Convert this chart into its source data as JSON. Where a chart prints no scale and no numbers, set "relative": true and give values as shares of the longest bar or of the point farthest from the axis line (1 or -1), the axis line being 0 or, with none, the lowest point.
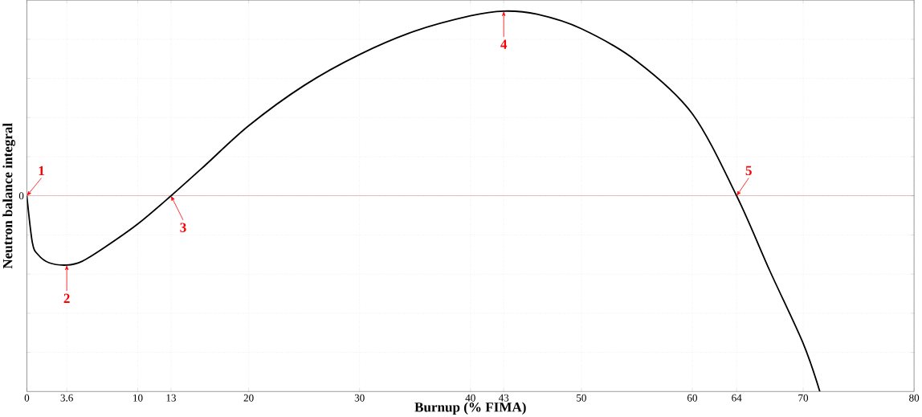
{
  "chart_data": {
    "type": "line",
    "relative": true,
    "xlabel": "Burnup (% FIMA)",
    "ylabel": "Neutron balance integral",
    "xlim": [
      0,
      80
    ],
    "xticks": [
      0,
      3.6,
      10,
      13,
      20,
      30,
      40,
      43,
      50,
      60,
      64,
      70,
      80
    ],
    "grid": true,
    "marker": "none",
    "line_style": "solid",
    "series": [
      {
        "color": "#000000",
        "x": [
          0,
          0.5,
          1,
          2,
          3.6,
          5,
          7,
          10,
          13,
          16,
          20,
          25,
          30,
          35,
          40,
          43,
          46,
          50,
          55,
          60,
          64,
          67,
          70,
          71.5
        ],
        "values": [
          0,
          -0.24,
          -0.3,
          -0.342,
          -0.354,
          -0.334,
          -0.264,
          -0.144,
          0,
          0.152,
          0.358,
          0.564,
          0.722,
          0.842,
          0.92,
          0.944,
          0.928,
          0.854,
          0.688,
          0.42,
          0,
          -0.384,
          -0.754,
          -1
        ]
      }
    ],
    "ref_lines": [
      {
        "axis": "y",
        "value": 0,
        "label": "0",
        "color": "#b03030"
      }
    ],
    "annotations": [
      {
        "text": "1",
        "x": 0,
        "y": 0
      },
      {
        "text": "2",
        "x": 3.6,
        "y": -0.354
      },
      {
        "text": "3",
        "x": 13,
        "y": 0
      },
      {
        "text": "4",
        "x": 43,
        "y": 0.944
      },
      {
        "text": "5",
        "x": 64,
        "y": 0
      }
    ]
  }
}
